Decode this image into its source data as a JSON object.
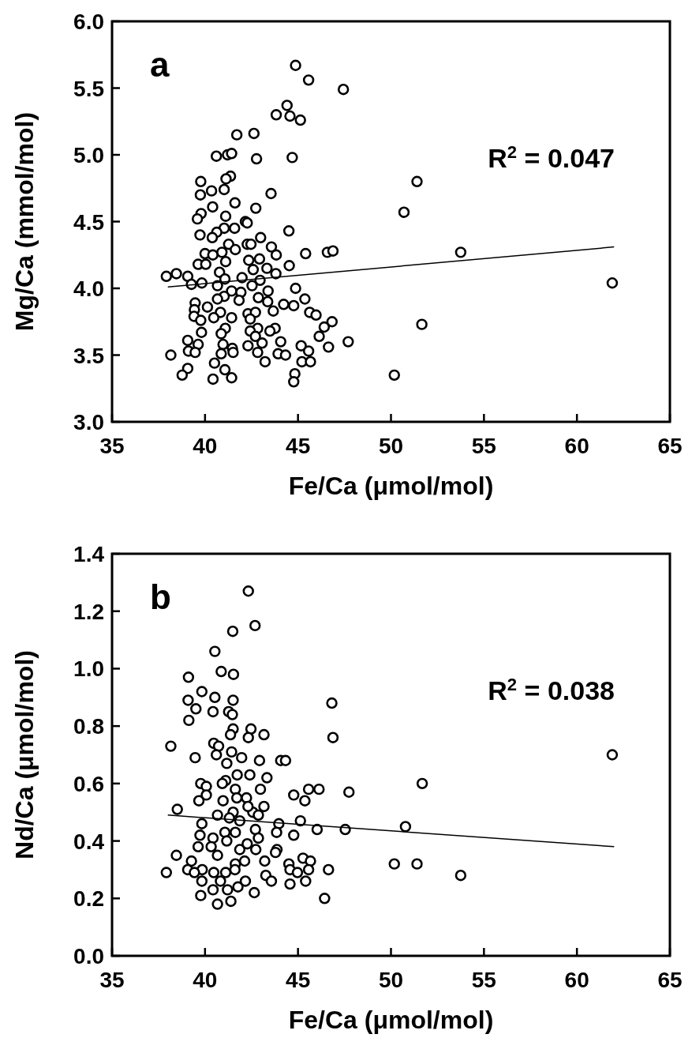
{
  "chart_data": [
    {
      "type": "scatter",
      "xlabel": "Fe/Ca (μmol/mol)",
      "ylabel": "Mg/Ca (mmol/mol)",
      "annotations": [
        "a",
        "R$^{2}$ = 0.047"
      ],
      "xlim": [
        35,
        65
      ],
      "xticks": [
        35,
        40,
        45,
        50,
        55,
        60,
        65
      ],
      "ylim": [
        3,
        6
      ],
      "yticks": [
        {
          "value": 3,
          "label": "3.0"
        },
        3.5,
        {
          "value": 4,
          "label": "4.0"
        },
        4.5,
        {
          "value": 5,
          "label": "5.0"
        },
        5.5,
        {
          "value": 6,
          "label": "6.0"
        }
      ],
      "series": [
        {
          "marker": "circle",
          "color": "#000000",
          "x": [
            44.87,
            45.57,
            47.44,
            43.83,
            44.41,
            44.57,
            45.13,
            41.71,
            42.63,
            40.61,
            41.21,
            41.43,
            42.77,
            44.69,
            51.4,
            41.37,
            41.13,
            39.77,
            40.35,
            39.75,
            41.03,
            43.55,
            41.61,
            40.41,
            42.73,
            39.79,
            50.7,
            41.11,
            39.59,
            42.17,
            42.27,
            41.59,
            41.03,
            44.51,
            39.73,
            40.63,
            40.39,
            42.99,
            41.27,
            42.27,
            42.47,
            43.57,
            41.63,
            45.41,
            46.58,
            46.88,
            53.75,
            40.0,
            40.42,
            40.91,
            43.83,
            42.35,
            42.93,
            41.11,
            39.63,
            40.04,
            44.53,
            43.33,
            42.59,
            40.78,
            43.81,
            37.92,
            38.46,
            39.07,
            41.07,
            41.99,
            42.96,
            39.27,
            39.83,
            40.67,
            42.53,
            44.87,
            61.9,
            41.43,
            41.93,
            43.39,
            41.03,
            42.87,
            41.83,
            45.37,
            40.67,
            39.47,
            40.13,
            43.37,
            44.23,
            44.77,
            39.43,
            40.83,
            42.31,
            42.71,
            43.67,
            45.63,
            45.97,
            39.41,
            40.47,
            41.43,
            42.43,
            39.77,
            41.09,
            42.83,
            43.77,
            46.41,
            46.83,
            51.66,
            39.81,
            40.87,
            42.43,
            43.49,
            46.14,
            44.07,
            47.7,
            42.71,
            39.07,
            39.63,
            40.97,
            42.31,
            43.07,
            45.17,
            41.47,
            46.64,
            38.16,
            39.11,
            39.47,
            40.87,
            41.51,
            42.83,
            43.93,
            44.33,
            45.57,
            43.23,
            40.51,
            45.21,
            45.67,
            39.07,
            41.07,
            38.77,
            40.43,
            41.43,
            44.83,
            44.77,
            50.18
          ],
          "values": [
            5.67,
            5.56,
            5.49,
            5.3,
            5.37,
            5.29,
            5.26,
            5.15,
            5.16,
            4.99,
            5.0,
            5.01,
            4.97,
            4.98,
            4.8,
            4.84,
            4.82,
            4.8,
            4.73,
            4.7,
            4.74,
            4.71,
            4.64,
            4.61,
            4.6,
            4.56,
            4.57,
            4.54,
            4.52,
            4.5,
            4.49,
            4.45,
            4.45,
            4.43,
            4.4,
            4.42,
            4.38,
            4.38,
            4.33,
            4.33,
            4.33,
            4.31,
            4.29,
            4.26,
            4.27,
            4.28,
            4.27,
            4.26,
            4.25,
            4.27,
            4.25,
            4.21,
            4.22,
            4.2,
            4.18,
            4.18,
            4.17,
            4.15,
            4.14,
            4.12,
            4.11,
            4.09,
            4.11,
            4.09,
            4.07,
            4.08,
            4.06,
            4.03,
            4.04,
            4.02,
            4.02,
            4.0,
            4.04,
            3.98,
            3.97,
            3.98,
            3.94,
            3.93,
            3.91,
            3.92,
            3.92,
            3.89,
            3.86,
            3.9,
            3.88,
            3.87,
            3.84,
            3.82,
            3.81,
            3.82,
            3.83,
            3.82,
            3.8,
            3.79,
            3.78,
            3.78,
            3.77,
            3.76,
            3.7,
            3.7,
            3.7,
            3.71,
            3.75,
            3.73,
            3.67,
            3.66,
            3.68,
            3.68,
            3.64,
            3.6,
            3.6,
            3.64,
            3.61,
            3.58,
            3.58,
            3.57,
            3.59,
            3.57,
            3.55,
            3.56,
            3.5,
            3.53,
            3.52,
            3.51,
            3.52,
            3.52,
            3.51,
            3.5,
            3.53,
            3.45,
            3.44,
            3.45,
            3.45,
            3.4,
            3.39,
            3.35,
            3.32,
            3.33,
            3.36,
            3.3,
            3.35
          ]
        },
        {
          "type": "line",
          "color": "#000000",
          "x": [
            38,
            62
          ],
          "values": [
            4.01,
            4.31
          ]
        }
      ]
    },
    {
      "type": "scatter",
      "xlabel": "Fe/Ca (μmol/mol)",
      "ylabel": "Nd/Ca (μmol/mol)",
      "annotations": [
        "b",
        "R$^{2}$ = 0.038"
      ],
      "xlim": [
        35,
        65
      ],
      "xticks": [
        35,
        40,
        45,
        50,
        55,
        60,
        65
      ],
      "ylim": [
        0,
        1.4
      ],
      "yticks": [
        {
          "value": 0,
          "label": "0.0"
        },
        0.2,
        0.4,
        0.6,
        0.8,
        {
          "value": 1,
          "label": "1.0"
        },
        1.2,
        1.4
      ],
      "series": [
        {
          "marker": "circle",
          "color": "#000000",
          "x": [
            42.33,
            42.69,
            41.49,
            40.53,
            40.87,
            41.53,
            39.11,
            39.83,
            40.53,
            39.09,
            41.51,
            46.82,
            39.51,
            40.43,
            41.27,
            41.47,
            39.13,
            42.47,
            41.51,
            43.17,
            42.33,
            46.88,
            41.37,
            38.16,
            40.47,
            40.73,
            41.43,
            40.61,
            39.47,
            41.97,
            42.93,
            44.07,
            44.33,
            61.9,
            41.17,
            41.73,
            42.41,
            43.33,
            41.11,
            39.77,
            40.07,
            40.93,
            41.63,
            45.57,
            46.13,
            51.68,
            42.98,
            47.74,
            40.07,
            44.77,
            40.97,
            41.71,
            42.23,
            39.67,
            45.37,
            38.51,
            41.51,
            42.57,
            43.17,
            42.31,
            40.67,
            41.31,
            41.87,
            42.87,
            43.97,
            45.13,
            39.83,
            46.03,
            47.54,
            50.78,
            41.07,
            41.63,
            42.71,
            43.85,
            39.73,
            44.77,
            40.43,
            42.87,
            41.17,
            42.27,
            39.63,
            40.33,
            42.73,
            43.87,
            41.87,
            38.46,
            40.67,
            43.79,
            45.27,
            45.67,
            42.13,
            43.21,
            39.27,
            41.63,
            44.51,
            50.18,
            51.4,
            37.92,
            39.07,
            39.85,
            41.61,
            44.57,
            46.64,
            45.57,
            53.75,
            39.43,
            40.47,
            41.11,
            43.27,
            44.97,
            39.83,
            40.83,
            42.17,
            43.57,
            45.41,
            44.57,
            41.77,
            40.43,
            41.21,
            42.65,
            39.77,
            41.39,
            46.43,
            40.67
          ],
          "values": [
            1.27,
            1.15,
            1.13,
            1.06,
            0.99,
            0.98,
            0.97,
            0.92,
            0.9,
            0.89,
            0.89,
            0.88,
            0.86,
            0.85,
            0.85,
            0.84,
            0.82,
            0.79,
            0.79,
            0.77,
            0.76,
            0.76,
            0.77,
            0.73,
            0.74,
            0.73,
            0.71,
            0.7,
            0.69,
            0.69,
            0.68,
            0.68,
            0.68,
            0.7,
            0.67,
            0.63,
            0.63,
            0.62,
            0.61,
            0.6,
            0.59,
            0.6,
            0.58,
            0.58,
            0.58,
            0.6,
            0.58,
            0.57,
            0.56,
            0.56,
            0.54,
            0.55,
            0.55,
            0.54,
            0.54,
            0.51,
            0.5,
            0.5,
            0.52,
            0.52,
            0.49,
            0.48,
            0.47,
            0.49,
            0.46,
            0.47,
            0.46,
            0.44,
            0.44,
            0.45,
            0.43,
            0.43,
            0.44,
            0.43,
            0.42,
            0.42,
            0.41,
            0.41,
            0.4,
            0.39,
            0.38,
            0.38,
            0.37,
            0.37,
            0.37,
            0.35,
            0.35,
            0.36,
            0.34,
            0.33,
            0.33,
            0.33,
            0.33,
            0.32,
            0.32,
            0.32,
            0.32,
            0.29,
            0.3,
            0.3,
            0.3,
            0.3,
            0.3,
            0.3,
            0.28,
            0.29,
            0.29,
            0.29,
            0.28,
            0.29,
            0.26,
            0.26,
            0.26,
            0.26,
            0.26,
            0.25,
            0.24,
            0.23,
            0.23,
            0.22,
            0.21,
            0.19,
            0.2,
            0.18
          ]
        },
        {
          "type": "line",
          "color": "#000000",
          "x": [
            38,
            62
          ],
          "values": [
            0.49,
            0.38
          ]
        }
      ]
    }
  ]
}
